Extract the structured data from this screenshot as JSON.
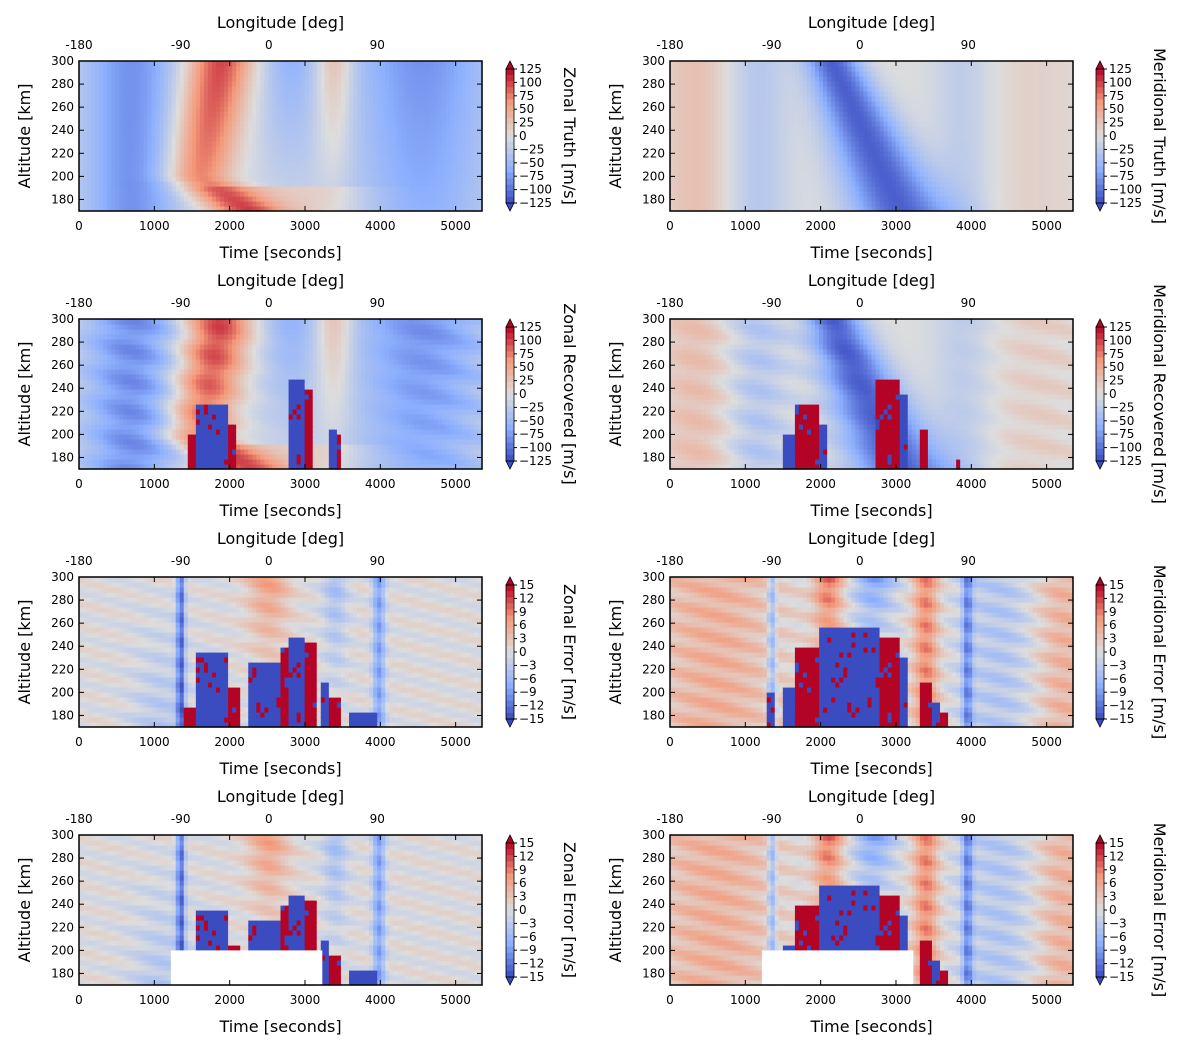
{
  "chart_data": [
    {
      "type": "heatmap",
      "name": "zonal-truth",
      "title": "",
      "xlabel": "Time [seconds]",
      "ylabel": "Altitude [km]",
      "top_xlabel": "Longitude [deg]",
      "xlim": [
        0,
        5350
      ],
      "ylim": [
        170,
        300
      ],
      "x_ticks": [
        "0",
        "1000",
        "2000",
        "3000",
        "4000",
        "5000"
      ],
      "x_tick_values": [
        0,
        1000,
        2000,
        3000,
        4000,
        5000
      ],
      "y_ticks": [
        "180",
        "200",
        "220",
        "240",
        "260",
        "280",
        "300"
      ],
      "y_tick_values": [
        180,
        200,
        220,
        240,
        260,
        280,
        300
      ],
      "top_x_ticks": [
        "-180",
        "-90",
        "0",
        "90"
      ],
      "top_x_tick_times": [
        0,
        1350,
        2520,
        3960
      ],
      "colorbar": {
        "label": "Zonal Truth [m/s]",
        "range": [
          -125,
          125
        ],
        "ticks": [
          "125",
          "100",
          "75",
          "50",
          "25",
          "0",
          "−25",
          "−50",
          "−75",
          "−100",
          "−125"
        ],
        "extend": "both"
      },
      "pattern": "truth-zonal",
      "mask": null
    },
    {
      "type": "heatmap",
      "name": "meridional-truth",
      "title": "",
      "xlabel": "Time [seconds]",
      "ylabel": "Altitude [km]",
      "top_xlabel": "Longitude [deg]",
      "xlim": [
        0,
        5350
      ],
      "ylim": [
        170,
        300
      ],
      "x_ticks": [
        "0",
        "1000",
        "2000",
        "3000",
        "4000",
        "5000"
      ],
      "x_tick_values": [
        0,
        1000,
        2000,
        3000,
        4000,
        5000
      ],
      "y_ticks": [
        "180",
        "200",
        "220",
        "240",
        "260",
        "280",
        "300"
      ],
      "y_tick_values": [
        180,
        200,
        220,
        240,
        260,
        280,
        300
      ],
      "top_x_ticks": [
        "-180",
        "-90",
        "0",
        "90"
      ],
      "top_x_tick_times": [
        0,
        1350,
        2520,
        3960
      ],
      "colorbar": {
        "label": "Meridional Truth [m/s]",
        "range": [
          -125,
          125
        ],
        "ticks": [
          "125",
          "100",
          "75",
          "50",
          "25",
          "0",
          "−25",
          "−50",
          "−75",
          "−100",
          "−125"
        ],
        "extend": "both"
      },
      "pattern": "truth-meridional",
      "mask": null
    },
    {
      "type": "heatmap",
      "name": "zonal-recovered",
      "title": "",
      "xlabel": "Time [seconds]",
      "ylabel": "Altitude [km]",
      "top_xlabel": "Longitude [deg]",
      "xlim": [
        0,
        5350
      ],
      "ylim": [
        170,
        300
      ],
      "x_ticks": [
        "0",
        "1000",
        "2000",
        "3000",
        "4000",
        "5000"
      ],
      "x_tick_values": [
        0,
        1000,
        2000,
        3000,
        4000,
        5000
      ],
      "y_ticks": [
        "180",
        "200",
        "220",
        "240",
        "260",
        "280",
        "300"
      ],
      "y_tick_values": [
        180,
        200,
        220,
        240,
        260,
        280,
        300
      ],
      "top_x_ticks": [
        "-180",
        "-90",
        "0",
        "90"
      ],
      "top_x_tick_times": [
        0,
        1350,
        2520,
        3960
      ],
      "colorbar": {
        "label": "Zonal Recovered [m/s]",
        "range": [
          -125,
          125
        ],
        "ticks": [
          "125",
          "100",
          "75",
          "50",
          "25",
          "0",
          "−25",
          "−50",
          "−75",
          "−100",
          "−125"
        ],
        "extend": "both"
      },
      "pattern": "recovered-zonal",
      "mask": null
    },
    {
      "type": "heatmap",
      "name": "meridional-recovered",
      "title": "",
      "xlabel": "Time [seconds]",
      "ylabel": "Altitude [km]",
      "top_xlabel": "Longitude [deg]",
      "xlim": [
        0,
        5350
      ],
      "ylim": [
        170,
        300
      ],
      "x_ticks": [
        "0",
        "1000",
        "2000",
        "3000",
        "4000",
        "5000"
      ],
      "x_tick_values": [
        0,
        1000,
        2000,
        3000,
        4000,
        5000
      ],
      "y_ticks": [
        "180",
        "200",
        "220",
        "240",
        "260",
        "280",
        "300"
      ],
      "y_tick_values": [
        180,
        200,
        220,
        240,
        260,
        280,
        300
      ],
      "top_x_ticks": [
        "-180",
        "-90",
        "0",
        "90"
      ],
      "top_x_tick_times": [
        0,
        1350,
        2520,
        3960
      ],
      "colorbar": {
        "label": "Meridional Recovered [m/s]",
        "range": [
          -125,
          125
        ],
        "ticks": [
          "125",
          "100",
          "75",
          "50",
          "25",
          "0",
          "−25",
          "−50",
          "−75",
          "−100",
          "−125"
        ],
        "extend": "both"
      },
      "pattern": "recovered-meridional",
      "mask": null
    },
    {
      "type": "heatmap",
      "name": "zonal-error",
      "title": "",
      "xlabel": "Time [seconds]",
      "ylabel": "Altitude [km]",
      "top_xlabel": "Longitude [deg]",
      "xlim": [
        0,
        5350
      ],
      "ylim": [
        170,
        300
      ],
      "x_ticks": [
        "0",
        "1000",
        "2000",
        "3000",
        "4000",
        "5000"
      ],
      "x_tick_values": [
        0,
        1000,
        2000,
        3000,
        4000,
        5000
      ],
      "y_ticks": [
        "180",
        "200",
        "220",
        "240",
        "260",
        "280",
        "300"
      ],
      "y_tick_values": [
        180,
        200,
        220,
        240,
        260,
        280,
        300
      ],
      "top_x_ticks": [
        "-180",
        "-90",
        "0",
        "90"
      ],
      "top_x_tick_times": [
        0,
        1350,
        2520,
        3960
      ],
      "colorbar": {
        "label": "Zonal Error [m/s]",
        "range": [
          -15,
          15
        ],
        "ticks": [
          "15",
          "12",
          "9",
          "6",
          "3",
          "0",
          "−3",
          "−6",
          "−9",
          "−12",
          "−15"
        ],
        "extend": "both"
      },
      "pattern": "error-zonal",
      "mask": null
    },
    {
      "type": "heatmap",
      "name": "meridional-error",
      "title": "",
      "xlabel": "Time [seconds]",
      "ylabel": "Altitude [km]",
      "top_xlabel": "Longitude [deg]",
      "xlim": [
        0,
        5350
      ],
      "ylim": [
        170,
        300
      ],
      "x_ticks": [
        "0",
        "1000",
        "2000",
        "3000",
        "4000",
        "5000"
      ],
      "x_tick_values": [
        0,
        1000,
        2000,
        3000,
        4000,
        5000
      ],
      "y_ticks": [
        "180",
        "200",
        "220",
        "240",
        "260",
        "280",
        "300"
      ],
      "y_tick_values": [
        180,
        200,
        220,
        240,
        260,
        280,
        300
      ],
      "top_x_ticks": [
        "-180",
        "-90",
        "0",
        "90"
      ],
      "top_x_tick_times": [
        0,
        1350,
        2520,
        3960
      ],
      "colorbar": {
        "label": "Meridional Error [m/s]",
        "range": [
          -15,
          15
        ],
        "ticks": [
          "15",
          "12",
          "9",
          "6",
          "3",
          "0",
          "−3",
          "−6",
          "−9",
          "−12",
          "−15"
        ],
        "extend": "both"
      },
      "pattern": "error-meridional",
      "mask": null
    },
    {
      "type": "heatmap",
      "name": "zonal-error-masked",
      "title": "",
      "xlabel": "Time [seconds]",
      "ylabel": "Altitude [km]",
      "top_xlabel": "Longitude [deg]",
      "xlim": [
        0,
        5350
      ],
      "ylim": [
        170,
        300
      ],
      "x_ticks": [
        "0",
        "1000",
        "2000",
        "3000",
        "4000",
        "5000"
      ],
      "x_tick_values": [
        0,
        1000,
        2000,
        3000,
        4000,
        5000
      ],
      "y_ticks": [
        "180",
        "200",
        "220",
        "240",
        "260",
        "280",
        "300"
      ],
      "y_tick_values": [
        180,
        200,
        220,
        240,
        260,
        280,
        300
      ],
      "top_x_ticks": [
        "-180",
        "-90",
        "0",
        "90"
      ],
      "top_x_tick_times": [
        0,
        1350,
        2520,
        3960
      ],
      "colorbar": {
        "label": "Zonal Error [m/s]",
        "range": [
          -15,
          15
        ],
        "ticks": [
          "15",
          "12",
          "9",
          "6",
          "3",
          "0",
          "−3",
          "−6",
          "−9",
          "−12",
          "−15"
        ],
        "extend": "both"
      },
      "pattern": "error-zonal",
      "mask": {
        "t": [
          1220,
          3230
        ],
        "alt": [
          170,
          200
        ]
      }
    },
    {
      "type": "heatmap",
      "name": "meridional-error-masked",
      "title": "",
      "xlabel": "Time [seconds]",
      "ylabel": "Altitude [km]",
      "top_xlabel": "Longitude [deg]",
      "xlim": [
        0,
        5350
      ],
      "ylim": [
        170,
        300
      ],
      "x_ticks": [
        "0",
        "1000",
        "2000",
        "3000",
        "4000",
        "5000"
      ],
      "x_tick_values": [
        0,
        1000,
        2000,
        3000,
        4000,
        5000
      ],
      "y_ticks": [
        "180",
        "200",
        "220",
        "240",
        "260",
        "280",
        "300"
      ],
      "y_tick_values": [
        180,
        200,
        220,
        240,
        260,
        280,
        300
      ],
      "top_x_ticks": [
        "-180",
        "-90",
        "0",
        "90"
      ],
      "top_x_tick_times": [
        0,
        1350,
        2520,
        3960
      ],
      "colorbar": {
        "label": "Meridional Error [m/s]",
        "range": [
          -15,
          15
        ],
        "ticks": [
          "15",
          "12",
          "9",
          "6",
          "3",
          "0",
          "−3",
          "−6",
          "−9",
          "−12",
          "−15"
        ],
        "extend": "both"
      },
      "pattern": "error-meridional",
      "mask": {
        "t": [
          1220,
          3230
        ],
        "alt": [
          170,
          200
        ]
      }
    }
  ]
}
